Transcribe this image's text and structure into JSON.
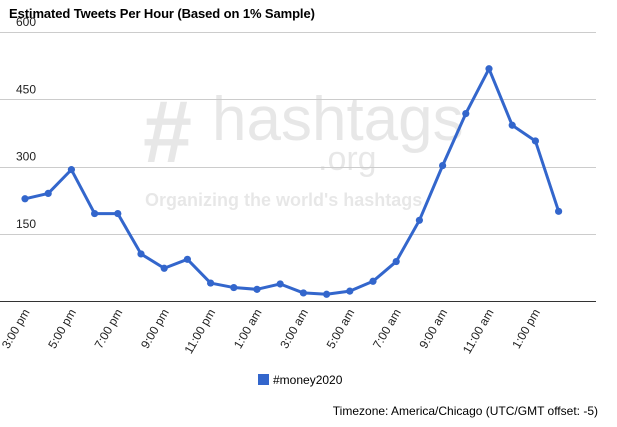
{
  "title": "Estimated Tweets Per Hour (Based on 1% Sample)",
  "footer": "Timezone: America/Chicago (UTC/GMT offset: -5)",
  "watermark": {
    "hash": "#",
    "brand": "hashtags",
    "domain": ".org",
    "tagline": "Organizing the world's hashtags"
  },
  "colors": {
    "series": "#3366cc",
    "grid": "#cccccc",
    "axis": "#333333"
  },
  "chart_data": {
    "type": "line",
    "title": "Estimated Tweets Per Hour (Based on 1% Sample)",
    "x_tick_labels": [
      "3:00 pm",
      "5:00 pm",
      "7:00 pm",
      "9:00 pm",
      "11:00 pm",
      "1:00 am",
      "3:00 am",
      "5:00 am",
      "7:00 am",
      "9:00 am",
      "11:00 am",
      "1:00 pm"
    ],
    "y_ticks": [
      150,
      300,
      450,
      600
    ],
    "ylim": [
      0,
      600
    ],
    "grid": true,
    "legend_position": "bottom",
    "series": [
      {
        "name": "#money2020",
        "x": [
          "3:00 pm",
          "4:00 pm",
          "5:00 pm",
          "6:00 pm",
          "7:00 pm",
          "8:00 pm",
          "9:00 pm",
          "10:00 pm",
          "11:00 pm",
          "12:00 am",
          "1:00 am",
          "2:00 am",
          "3:00 am",
          "4:00 am",
          "5:00 am",
          "6:00 am",
          "7:00 am",
          "8:00 am",
          "9:00 am",
          "10:00 am",
          "11:00 am",
          "12:00 pm",
          "1:00 pm",
          "2:00 pm"
        ],
        "values": [
          228,
          240,
          293,
          195,
          195,
          105,
          73,
          93,
          40,
          30,
          26,
          38,
          18,
          15,
          22,
          44,
          88,
          180,
          302,
          418,
          518,
          392,
          357,
          200
        ]
      }
    ]
  }
}
